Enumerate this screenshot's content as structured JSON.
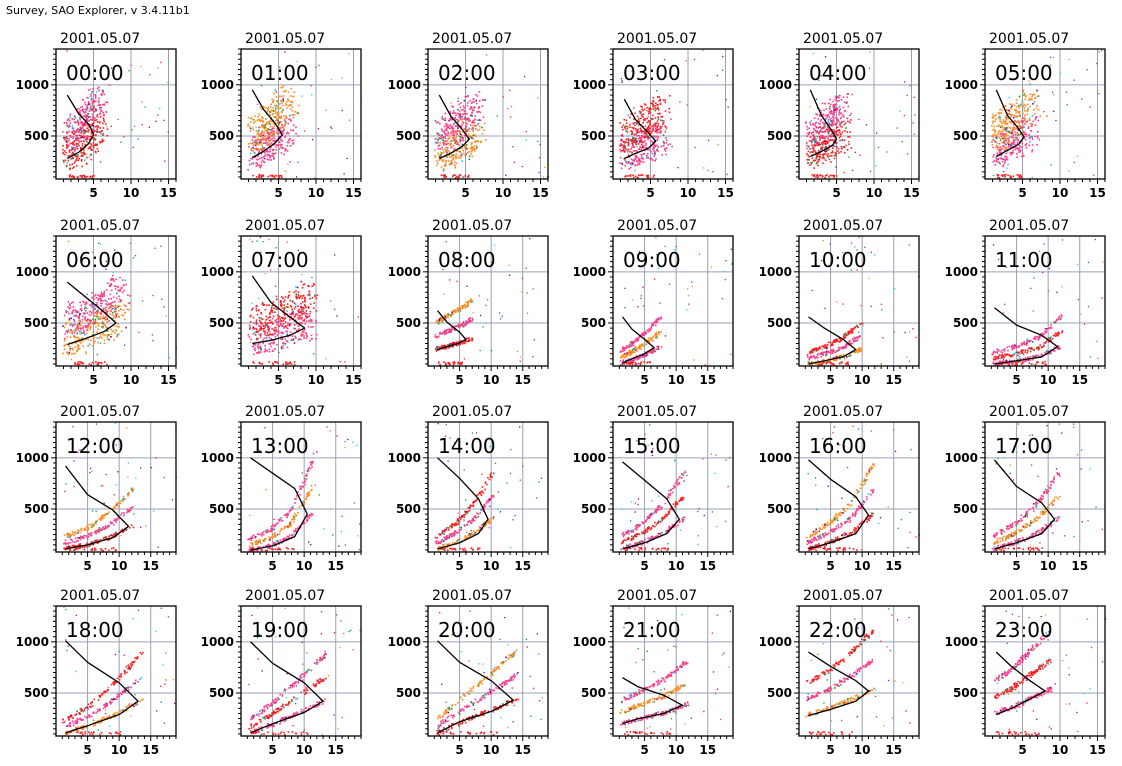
{
  "app_title": "Survey, SAO Explorer, v 3.4.11b1",
  "colors": {
    "grid": "#9aa0b4",
    "profile": "#000000",
    "trace_colors": [
      "#ff1e1e",
      "#ff3c8c",
      "#ff8c1e",
      "#c800c8",
      "#1ec8ff",
      "#14a014",
      "#800080",
      "#008c8c"
    ]
  },
  "chart_data": [
    {
      "type": "scatter",
      "date": "2001.05.07",
      "time": "00:00",
      "xlim": [
        0,
        16
      ],
      "xticks": [
        5,
        10,
        15
      ],
      "ylim": [
        80,
        1350
      ],
      "yticks": [
        500,
        1000
      ],
      "profile": [
        [
          1.5,
          280
        ],
        [
          3,
          340
        ],
        [
          4.4,
          430
        ],
        [
          5,
          520
        ],
        [
          4.4,
          610
        ],
        [
          3,
          720
        ],
        [
          1.5,
          900
        ]
      ],
      "traces": []
    },
    {
      "type": "scatter",
      "date": "2001.05.07",
      "time": "01:00",
      "xlim": [
        0,
        16
      ],
      "xticks": [
        5,
        10,
        15
      ],
      "ylim": [
        80,
        1350
      ],
      "yticks": [
        500,
        1000
      ],
      "profile": [
        [
          1.5,
          290
        ],
        [
          3,
          350
        ],
        [
          4.5,
          430
        ],
        [
          5.5,
          510
        ],
        [
          4.6,
          620
        ],
        [
          3,
          760
        ],
        [
          1.5,
          950
        ]
      ],
      "traces": []
    },
    {
      "type": "scatter",
      "date": "2001.05.07",
      "time": "02:00",
      "xlim": [
        0,
        16
      ],
      "xticks": [
        5,
        10,
        15
      ],
      "ylim": [
        80,
        1350
      ],
      "yticks": [
        500,
        1000
      ],
      "profile": [
        [
          1.5,
          280
        ],
        [
          3,
          330
        ],
        [
          4.6,
          400
        ],
        [
          5.5,
          470
        ],
        [
          4.6,
          560
        ],
        [
          3,
          700
        ],
        [
          1.5,
          900
        ]
      ],
      "traces": []
    },
    {
      "type": "scatter",
      "date": "2001.05.07",
      "time": "03:00",
      "xlim": [
        0,
        16
      ],
      "xticks": [
        5,
        10,
        15
      ],
      "ylim": [
        80,
        1350
      ],
      "yticks": [
        500,
        1000
      ],
      "profile": [
        [
          1.5,
          280
        ],
        [
          3,
          330
        ],
        [
          4.7,
          380
        ],
        [
          5.7,
          450
        ],
        [
          4.6,
          540
        ],
        [
          3,
          660
        ],
        [
          1.5,
          860
        ]
      ],
      "traces": []
    },
    {
      "type": "scatter",
      "date": "2001.05.07",
      "time": "04:00",
      "xlim": [
        0,
        16
      ],
      "xticks": [
        5,
        10,
        15
      ],
      "ylim": [
        80,
        1350
      ],
      "yticks": [
        500,
        1000
      ],
      "profile": [
        [
          1.5,
          300
        ],
        [
          3,
          350
        ],
        [
          4.5,
          410
        ],
        [
          5,
          470
        ],
        [
          4.3,
          560
        ],
        [
          3,
          700
        ],
        [
          1.5,
          950
        ]
      ],
      "traces": []
    },
    {
      "type": "scatter",
      "date": "2001.05.07",
      "time": "05:00",
      "xlim": [
        0,
        16
      ],
      "xticks": [
        5,
        10,
        15
      ],
      "ylim": [
        80,
        1350
      ],
      "yticks": [
        500,
        1000
      ],
      "profile": [
        [
          1.5,
          300
        ],
        [
          3,
          360
        ],
        [
          4.5,
          420
        ],
        [
          5.2,
          490
        ],
        [
          4.4,
          580
        ],
        [
          3,
          700
        ],
        [
          1.5,
          950
        ]
      ],
      "traces": []
    },
    {
      "type": "scatter",
      "date": "2001.05.07",
      "time": "06:00",
      "xlim": [
        0,
        16
      ],
      "xticks": [
        5,
        10,
        15
      ],
      "ylim": [
        80,
        1350
      ],
      "yticks": [
        500,
        1000
      ],
      "profile": [
        [
          1.5,
          290
        ],
        [
          4,
          350
        ],
        [
          6.5,
          420
        ],
        [
          8,
          500
        ],
        [
          6.5,
          600
        ],
        [
          4,
          750
        ],
        [
          1.5,
          900
        ]
      ],
      "traces": []
    },
    {
      "type": "scatter",
      "date": "2001.05.07",
      "time": "07:00",
      "xlim": [
        0,
        16
      ],
      "xticks": [
        5,
        10,
        15
      ],
      "ylim": [
        80,
        1350
      ],
      "yticks": [
        500,
        1000
      ],
      "profile": [
        [
          1.5,
          300
        ],
        [
          4,
          330
        ],
        [
          6.5,
          380
        ],
        [
          8.5,
          450
        ],
        [
          6.5,
          560
        ],
        [
          4,
          700
        ],
        [
          1.5,
          960
        ]
      ],
      "traces": []
    },
    {
      "type": "scatter",
      "date": "2001.05.07",
      "time": "08:00",
      "xlim": [
        0,
        19
      ],
      "xticks": [
        5,
        10,
        15
      ],
      "ylim": [
        80,
        1350
      ],
      "yticks": [
        500,
        1000
      ],
      "profile": [
        [
          1.5,
          240
        ],
        [
          3,
          270
        ],
        [
          4.8,
          300
        ],
        [
          6,
          340
        ],
        [
          5,
          410
        ],
        [
          3,
          510
        ],
        [
          1.5,
          620
        ]
      ],
      "traces": []
    },
    {
      "type": "scatter",
      "date": "2001.05.07",
      "time": "09:00",
      "xlim": [
        0,
        19
      ],
      "xticks": [
        5,
        10,
        15
      ],
      "ylim": [
        80,
        1350
      ],
      "yticks": [
        500,
        1000
      ],
      "profile": [
        [
          1.5,
          110
        ],
        [
          3,
          150
        ],
        [
          5,
          200
        ],
        [
          6.5,
          260
        ],
        [
          5,
          340
        ],
        [
          3,
          440
        ],
        [
          1.5,
          560
        ]
      ],
      "traces": []
    },
    {
      "type": "scatter",
      "date": "2001.05.07",
      "time": "10:00",
      "xlim": [
        0,
        19
      ],
      "xticks": [
        5,
        10,
        15
      ],
      "ylim": [
        80,
        1350
      ],
      "yticks": [
        500,
        1000
      ],
      "profile": [
        [
          1.5,
          100
        ],
        [
          4,
          130
        ],
        [
          7,
          170
        ],
        [
          9,
          240
        ],
        [
          7,
          340
        ],
        [
          4,
          450
        ],
        [
          1.5,
          560
        ]
      ],
      "traces": []
    },
    {
      "type": "scatter",
      "date": "2001.05.07",
      "time": "11:00",
      "xlim": [
        0,
        19
      ],
      "xticks": [
        5,
        10,
        15
      ],
      "ylim": [
        80,
        1350
      ],
      "yticks": [
        500,
        1000
      ],
      "profile": [
        [
          1.5,
          100
        ],
        [
          5,
          130
        ],
        [
          9,
          170
        ],
        [
          11.5,
          270
        ],
        [
          9,
          380
        ],
        [
          5,
          480
        ],
        [
          1.5,
          650
        ]
      ],
      "traces": []
    },
    {
      "type": "scatter",
      "date": "2001.05.07",
      "time": "12:00",
      "xlim": [
        0,
        19
      ],
      "xticks": [
        5,
        10,
        15
      ],
      "ylim": [
        80,
        1350
      ],
      "yticks": [
        500,
        1000
      ],
      "profile": [
        [
          1.5,
          110
        ],
        [
          5,
          150
        ],
        [
          9,
          220
        ],
        [
          11.5,
          330
        ],
        [
          9,
          490
        ],
        [
          5,
          640
        ],
        [
          1.5,
          920
        ]
      ],
      "traces": []
    },
    {
      "type": "scatter",
      "date": "2001.05.07",
      "time": "13:00",
      "xlim": [
        0,
        19
      ],
      "xticks": [
        5,
        10,
        15
      ],
      "ylim": [
        80,
        1350
      ],
      "yticks": [
        500,
        1000
      ],
      "profile": [
        [
          1.5,
          100
        ],
        [
          5,
          140
        ],
        [
          8.5,
          230
        ],
        [
          10.5,
          450
        ],
        [
          8.5,
          700
        ],
        [
          5,
          850
        ],
        [
          1.5,
          1000
        ]
      ],
      "traces": []
    },
    {
      "type": "scatter",
      "date": "2001.05.07",
      "time": "14:00",
      "xlim": [
        0,
        19
      ],
      "xticks": [
        5,
        10,
        15
      ],
      "ylim": [
        80,
        1350
      ],
      "yticks": [
        500,
        1000
      ],
      "profile": [
        [
          1.5,
          110
        ],
        [
          5,
          170
        ],
        [
          8,
          260
        ],
        [
          9.5,
          400
        ],
        [
          8,
          600
        ],
        [
          5,
          800
        ],
        [
          1.5,
          1000
        ]
      ],
      "traces": []
    },
    {
      "type": "scatter",
      "date": "2001.05.07",
      "time": "15:00",
      "xlim": [
        0,
        19
      ],
      "xticks": [
        5,
        10,
        15
      ],
      "ylim": [
        80,
        1350
      ],
      "yticks": [
        500,
        1000
      ],
      "profile": [
        [
          1.5,
          110
        ],
        [
          5,
          170
        ],
        [
          8.5,
          260
        ],
        [
          10.5,
          400
        ],
        [
          8.5,
          600
        ],
        [
          5,
          780
        ],
        [
          1.5,
          960
        ]
      ],
      "traces": []
    },
    {
      "type": "scatter",
      "date": "2001.05.07",
      "time": "16:00",
      "xlim": [
        0,
        19
      ],
      "xticks": [
        5,
        10,
        15
      ],
      "ylim": [
        80,
        1350
      ],
      "yticks": [
        500,
        1000
      ],
      "profile": [
        [
          1.5,
          110
        ],
        [
          5,
          170
        ],
        [
          9,
          260
        ],
        [
          11,
          440
        ],
        [
          9,
          620
        ],
        [
          5,
          790
        ],
        [
          1.5,
          980
        ]
      ],
      "traces": []
    },
    {
      "type": "scatter",
      "date": "2001.05.07",
      "time": "17:00",
      "xlim": [
        0,
        19
      ],
      "xticks": [
        5,
        10,
        15
      ],
      "ylim": [
        80,
        1350
      ],
      "yticks": [
        500,
        1000
      ],
      "profile": [
        [
          1.5,
          110
        ],
        [
          5,
          170
        ],
        [
          9,
          260
        ],
        [
          11,
          400
        ],
        [
          9,
          560
        ],
        [
          5,
          720
        ],
        [
          1.5,
          980
        ]
      ],
      "traces": []
    },
    {
      "type": "scatter",
      "date": "2001.05.07",
      "time": "18:00",
      "xlim": [
        0,
        19
      ],
      "xticks": [
        5,
        10,
        15
      ],
      "ylim": [
        80,
        1350
      ],
      "yticks": [
        500,
        1000
      ],
      "profile": [
        [
          1.5,
          110
        ],
        [
          5,
          180
        ],
        [
          10,
          290
        ],
        [
          13,
          420
        ],
        [
          10,
          600
        ],
        [
          5,
          800
        ],
        [
          1.5,
          1010
        ]
      ],
      "traces": []
    },
    {
      "type": "scatter",
      "date": "2001.05.07",
      "time": "19:00",
      "xlim": [
        0,
        19
      ],
      "xticks": [
        5,
        10,
        15
      ],
      "ylim": [
        80,
        1350
      ],
      "yticks": [
        500,
        1000
      ],
      "profile": [
        [
          1.5,
          110
        ],
        [
          5,
          200
        ],
        [
          10,
          310
        ],
        [
          13,
          420
        ],
        [
          10,
          600
        ],
        [
          5,
          790
        ],
        [
          1.5,
          1000
        ]
      ],
      "traces": []
    },
    {
      "type": "scatter",
      "date": "2001.05.07",
      "time": "20:00",
      "xlim": [
        0,
        19
      ],
      "xticks": [
        5,
        10,
        15
      ],
      "ylim": [
        80,
        1350
      ],
      "yticks": [
        500,
        1000
      ],
      "profile": [
        [
          1.5,
          110
        ],
        [
          5,
          220
        ],
        [
          10,
          320
        ],
        [
          13.5,
          430
        ],
        [
          10,
          620
        ],
        [
          5,
          800
        ],
        [
          1.5,
          1010
        ]
      ],
      "traces": []
    },
    {
      "type": "scatter",
      "date": "2001.05.07",
      "time": "21:00",
      "xlim": [
        0,
        19
      ],
      "xticks": [
        5,
        10,
        15
      ],
      "ylim": [
        80,
        1350
      ],
      "yticks": [
        500,
        1000
      ],
      "profile": [
        [
          1.5,
          200
        ],
        [
          4,
          250
        ],
        [
          8,
          300
        ],
        [
          11,
          380
        ],
        [
          8,
          480
        ],
        [
          4,
          560
        ],
        [
          1.5,
          650
        ]
      ],
      "traces": []
    },
    {
      "type": "scatter",
      "date": "2001.05.07",
      "time": "22:00",
      "xlim": [
        0,
        19
      ],
      "xticks": [
        5,
        10,
        15
      ],
      "ylim": [
        80,
        1350
      ],
      "yticks": [
        500,
        1000
      ],
      "profile": [
        [
          1.5,
          280
        ],
        [
          5,
          340
        ],
        [
          9,
          420
        ],
        [
          11,
          520
        ],
        [
          9,
          620
        ],
        [
          5,
          760
        ],
        [
          1.5,
          900
        ]
      ],
      "traces": []
    },
    {
      "type": "scatter",
      "date": "2001.05.07",
      "time": "23:00",
      "xlim": [
        0,
        16
      ],
      "xticks": [
        5,
        10,
        15
      ],
      "ylim": [
        80,
        1350
      ],
      "yticks": [
        500,
        1000
      ],
      "profile": [
        [
          1.5,
          290
        ],
        [
          3.5,
          350
        ],
        [
          6,
          440
        ],
        [
          8,
          520
        ],
        [
          6,
          620
        ],
        [
          3.5,
          760
        ],
        [
          1.5,
          900
        ]
      ],
      "traces": []
    }
  ]
}
